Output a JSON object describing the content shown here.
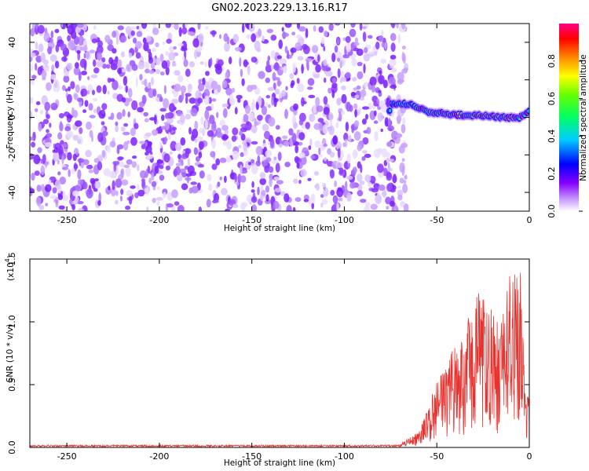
{
  "title": "GN02.2023.229.13.16.R17",
  "chart_data": [
    {
      "type": "heatmap",
      "xlabel": "Height of straight line (km)",
      "ylabel": "Frequency (Hz)",
      "xlim": [
        -270,
        0
      ],
      "ylim": [
        -50,
        50
      ],
      "x_ticks": [
        -250,
        -200,
        -150,
        -100,
        -50,
        0
      ],
      "x_tick_labels": [
        "-250",
        "-200",
        "-150",
        "-100",
        "-50",
        "0"
      ],
      "y_ticks": [
        -40,
        -20,
        0,
        20,
        40
      ],
      "y_tick_labels": [
        "-40",
        "-20",
        "0",
        "20",
        "40"
      ],
      "noise_region_x": [
        -270,
        -70
      ],
      "signal_ridge": [
        {
          "x": -75,
          "y": 7
        },
        {
          "x": -65,
          "y": 7
        },
        {
          "x": -55,
          "y": 3
        },
        {
          "x": -45,
          "y": 2
        },
        {
          "x": -35,
          "y": 1
        },
        {
          "x": -25,
          "y": 1
        },
        {
          "x": -15,
          "y": 0
        },
        {
          "x": -5,
          "y": 0
        },
        {
          "x": 0,
          "y": 3
        }
      ],
      "colorbar": {
        "label": "Normalized spectral amplitude",
        "ticks": [
          0.0,
          0.2,
          0.4,
          0.6,
          0.8
        ],
        "tick_labels": [
          "0.0",
          "0.2",
          "0.4",
          "0.6",
          "0.8"
        ],
        "range": [
          0,
          1
        ],
        "colors": [
          "#ffffff",
          "#8800ff",
          "#0000ff",
          "#00ffff",
          "#00ff00",
          "#ffff00",
          "#ff8800",
          "#ff0000",
          "#ff00aa"
        ]
      },
      "grid": false
    },
    {
      "type": "line",
      "xlabel": "Height of straight line (km)",
      "ylabel": "SNR (10 * v/v)",
      "y_scale_label": "(x10",
      "y_scale_exp": "4",
      "y_scale_close": ")",
      "xlim": [
        -270,
        0
      ],
      "ylim": [
        0,
        1.5
      ],
      "x_ticks": [
        -250,
        -200,
        -150,
        -100,
        -50,
        0
      ],
      "x_tick_labels": [
        "-250",
        "-200",
        "-150",
        "-100",
        "-50",
        "0"
      ],
      "y_ticks": [
        0.0,
        0.5,
        1.0,
        1.5
      ],
      "y_tick_labels": [
        "0.0",
        "0.5",
        "1.0",
        "1.5"
      ],
      "series": [
        {
          "color": "#e8322e",
          "envelope": [
            {
              "x": -270,
              "y": 0.01
            },
            {
              "x": -80,
              "y": 0.01
            },
            {
              "x": -70,
              "y": 0.03
            },
            {
              "x": -60,
              "y": 0.12
            },
            {
              "x": -55,
              "y": 0.3
            },
            {
              "x": -50,
              "y": 0.55
            },
            {
              "x": -45,
              "y": 0.65
            },
            {
              "x": -40,
              "y": 0.9
            },
            {
              "x": -35,
              "y": 0.85
            },
            {
              "x": -30,
              "y": 1.3
            },
            {
              "x": -25,
              "y": 1.2
            },
            {
              "x": -20,
              "y": 1.1
            },
            {
              "x": -15,
              "y": 1.0
            },
            {
              "x": -10,
              "y": 1.45
            },
            {
              "x": -5,
              "y": 1.5
            },
            {
              "x": -2,
              "y": 0.4
            },
            {
              "x": 0,
              "y": 0.45
            }
          ]
        }
      ],
      "grid": false
    }
  ]
}
